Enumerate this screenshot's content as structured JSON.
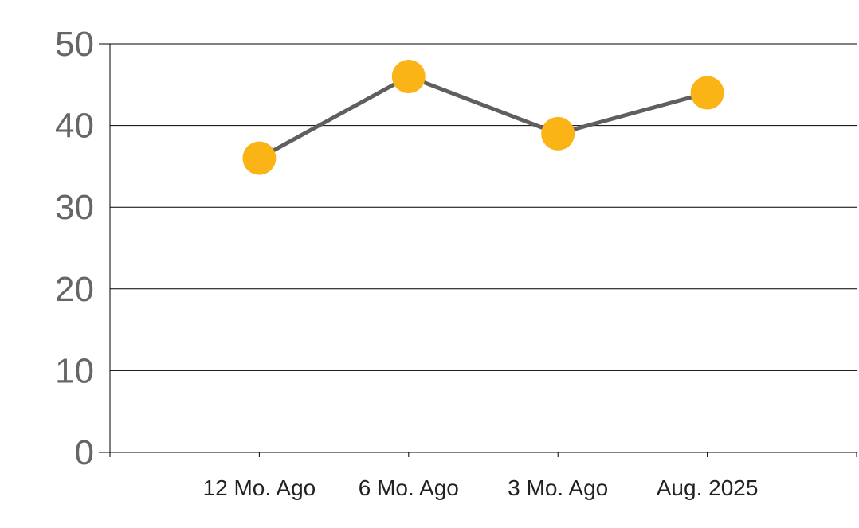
{
  "chart_data": {
    "type": "line",
    "title": "",
    "xlabel": "",
    "ylabel": "",
    "categories": [
      "12 Mo. Ago",
      "6 Mo. Ago",
      "3 Mo. Ago",
      "Aug. 2025"
    ],
    "series": [
      {
        "values": [
          36,
          46,
          39,
          44
        ]
      }
    ],
    "ylim": [
      0,
      50
    ],
    "yticks": [
      "0",
      "10",
      "20",
      "30",
      "40",
      "50"
    ],
    "grid": true,
    "colors": {
      "line": "#5f5f5f",
      "marker": "#fbb416"
    }
  }
}
